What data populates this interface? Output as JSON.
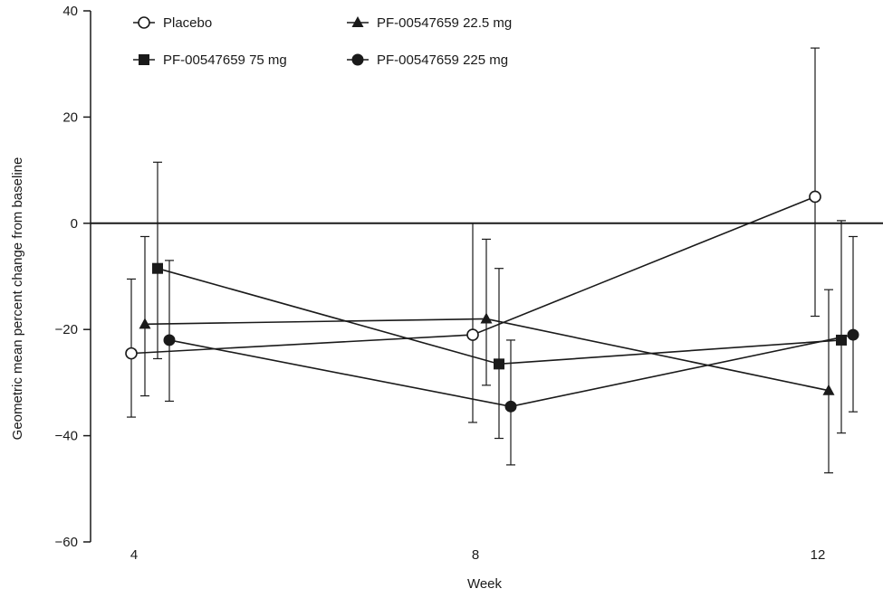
{
  "chart_data": {
    "type": "line",
    "title": "",
    "xlabel": "Week",
    "ylabel": "Geometric mean percent change from baseline",
    "ylim": [
      -60,
      40
    ],
    "yticks": [
      40,
      20,
      0,
      -20,
      -40,
      -60
    ],
    "yticklabels": [
      "40",
      "20",
      "0",
      "−20",
      "−40",
      "−60"
    ],
    "xticks": [
      4,
      8,
      12
    ],
    "xticklabels": [
      "4",
      "8",
      "12"
    ],
    "reference_line_y": 0,
    "grid": false,
    "legend_position": "top-left",
    "series": [
      {
        "name": "Placebo",
        "marker": "circle-open",
        "x": [
          4,
          8,
          12
        ],
        "values": [
          -24.5,
          -21,
          5
        ],
        "error_low": [
          -36.5,
          -37.5,
          -17.5
        ],
        "error_high": [
          -10.5,
          0,
          33
        ]
      },
      {
        "name": "PF-00547659 22.5 mg",
        "marker": "triangle",
        "x": [
          4,
          8,
          12
        ],
        "values": [
          -19,
          -18,
          -31.5
        ],
        "error_low": [
          -32.5,
          -30.5,
          -47
        ],
        "error_high": [
          -2.5,
          -3,
          -12.5
        ]
      },
      {
        "name": "PF-00547659 75 mg",
        "marker": "square",
        "x": [
          4,
          8,
          12
        ],
        "values": [
          -8.5,
          -26.5,
          -22
        ],
        "error_low": [
          -25.5,
          -40.5,
          -39.5
        ],
        "error_high": [
          11.5,
          -8.5,
          0.5
        ]
      },
      {
        "name": "PF-00547659 225 mg",
        "marker": "circle-filled",
        "x": [
          4,
          8,
          12
        ],
        "values": [
          -22,
          -34.5,
          -21
        ],
        "error_low": [
          -33.5,
          -45.5,
          -35.5
        ],
        "error_high": [
          -7,
          -22,
          -2.5
        ]
      }
    ]
  }
}
